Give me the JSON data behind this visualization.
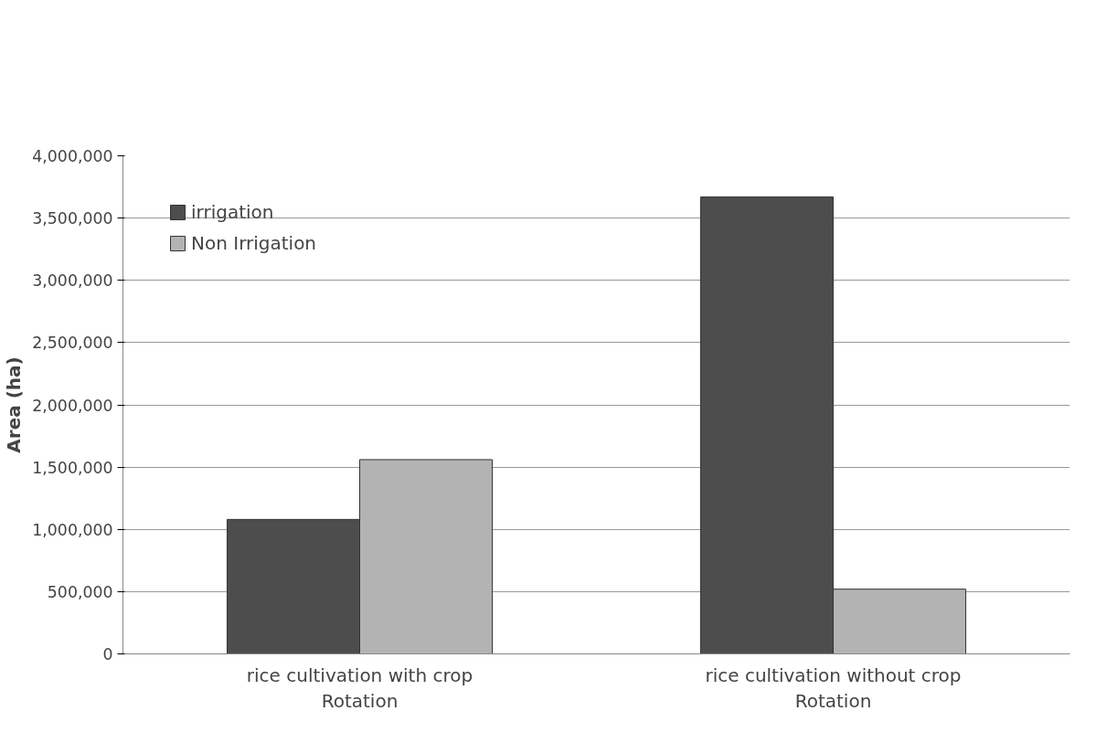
{
  "chart_data": {
    "type": "bar",
    "ylabel": "Area (ha)",
    "categories": [
      "rice cultivation with crop\nRotation",
      "rice cultivation without crop\nRotation"
    ],
    "series": [
      {
        "name": "irrigation",
        "color": "#4d4d4d",
        "values": [
          1080000,
          3670000
        ]
      },
      {
        "name": "Non Irrigation",
        "color": "#b3b3b3",
        "values": [
          1560000,
          520000
        ]
      }
    ],
    "ylim": [
      0,
      4000000
    ],
    "yticks": [
      {
        "value": 0,
        "label": "0"
      },
      {
        "value": 500000,
        "label": "500,000"
      },
      {
        "value": 1000000,
        "label": "1,000,000"
      },
      {
        "value": 1500000,
        "label": "1,500,000"
      },
      {
        "value": 2000000,
        "label": "2,000,000"
      },
      {
        "value": 2500000,
        "label": "2,500,000"
      },
      {
        "value": 3000000,
        "label": "3,000,000"
      },
      {
        "value": 3500000,
        "label": "3,500,000"
      },
      {
        "value": 4000000,
        "label": "4,000,000"
      }
    ],
    "grid": "y",
    "legend": "top left"
  }
}
